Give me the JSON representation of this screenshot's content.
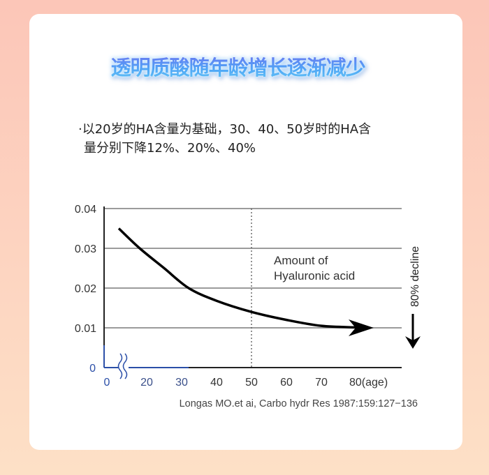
{
  "header": {
    "title": "透明质酸随年龄增长逐渐减少",
    "title_mark": "C"
  },
  "description": {
    "bullet": "·",
    "line1": "以20岁的HA含量为基础，30、40、50岁时的HA含",
    "line2": "量分别下降12%、20%、40%"
  },
  "colors": {
    "title_gradient": [
      "#6f6cf0",
      "#4fa6f6"
    ],
    "curve": "#000000",
    "zero_axis": "#2b4fa8",
    "grid": "#7a7a7a"
  },
  "chart_data": {
    "type": "line",
    "title": "",
    "xlabel": "(age)",
    "ylabel": "",
    "x_ticks": [
      "0",
      "20",
      "30",
      "40",
      "50",
      "60",
      "70",
      "80(age)"
    ],
    "y_ticks": [
      "0.04",
      "0.03",
      "0.02",
      "0.01",
      "0"
    ],
    "ylim": [
      0,
      0.04
    ],
    "xlim": [
      0,
      85
    ],
    "axis_break": "between 0 and 20",
    "grid": "horizontal",
    "reference_line": {
      "x": 50,
      "style": "dotted"
    },
    "series": [
      {
        "name": "Amount of Hyaluronic acid",
        "x": [
          12,
          18,
          25,
          32,
          40,
          50,
          60,
          70,
          80,
          85
        ],
        "y": [
          0.035,
          0.03,
          0.025,
          0.02,
          0.0168,
          0.014,
          0.012,
          0.0105,
          0.0101,
          0.01
        ]
      }
    ],
    "annotations": {
      "series_label_line1": "Amount of",
      "series_label_line2": "Hyaluronic acid",
      "decline": "80% decline"
    },
    "source": "Longas MO.et ai, Carbo hydr Res 1987:159:127−136"
  }
}
